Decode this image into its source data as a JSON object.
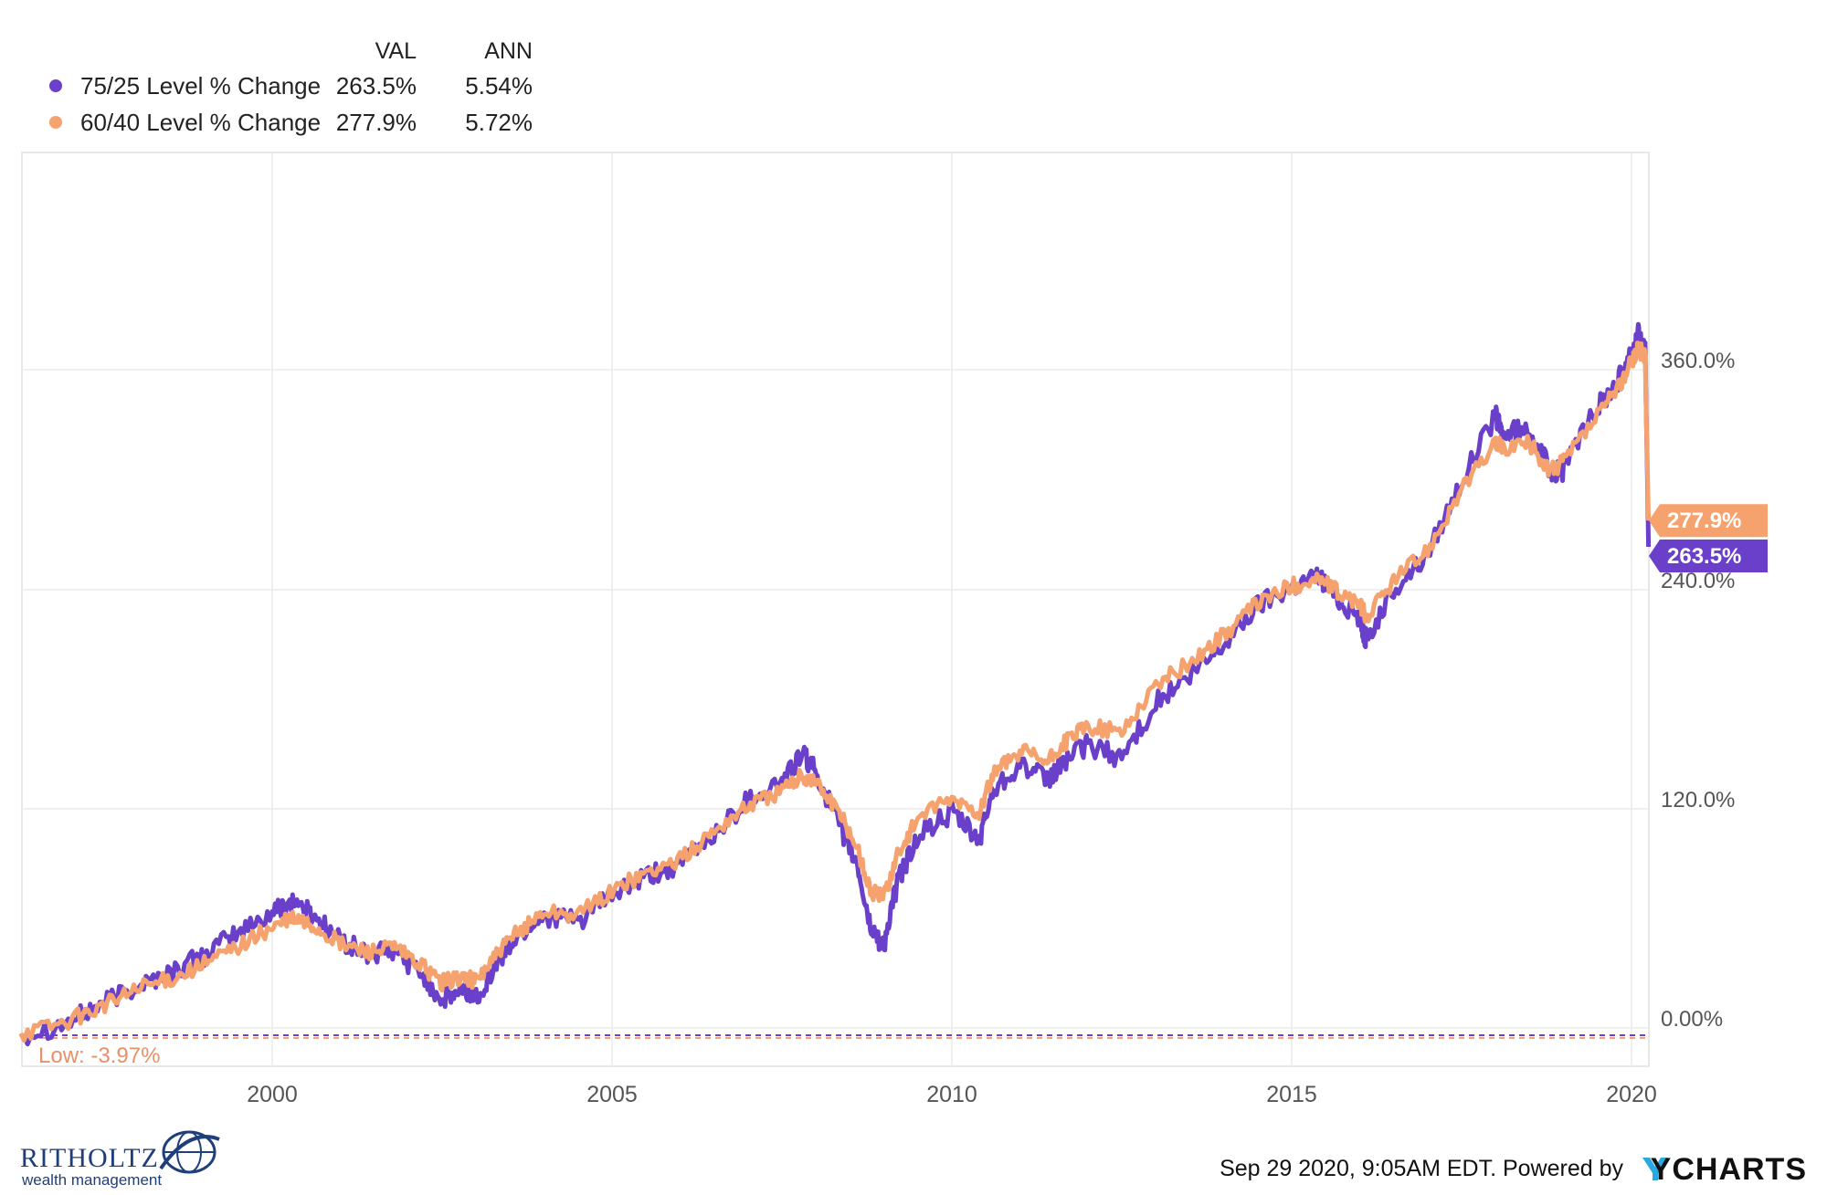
{
  "chart_data": {
    "type": "line",
    "title": "",
    "xlabel": "",
    "ylabel": "",
    "x_ticks": [
      "2000",
      "2005",
      "2010",
      "2015",
      "2020"
    ],
    "y_ticks": [
      "0.00%",
      "120.0%",
      "240.0%",
      "360.0%"
    ],
    "ylim": [
      -28,
      470
    ],
    "xlim": [
      1996.3,
      2020.3
    ],
    "legend_position": "top-left",
    "legend_columns": [
      "VAL",
      "ANN"
    ],
    "grid": true,
    "series": [
      {
        "name": "75/25 Level % Change",
        "val": "263.5%",
        "ann": "5.54%",
        "end_label": "263.5%",
        "color": "#6a3fc9",
        "x": [
          1996.3,
          1997.0,
          1997.5,
          1998.0,
          1998.5,
          1999.0,
          1999.5,
          2000.0,
          2000.3,
          2000.6,
          2001.0,
          2001.4,
          2001.8,
          2002.2,
          2002.5,
          2002.8,
          2003.0,
          2003.3,
          2003.6,
          2004.0,
          2004.5,
          2005.0,
          2005.5,
          2006.0,
          2006.5,
          2007.0,
          2007.5,
          2007.8,
          2008.0,
          2008.3,
          2008.6,
          2008.8,
          2009.0,
          2009.2,
          2009.5,
          2010.0,
          2010.4,
          2010.6,
          2011.0,
          2011.4,
          2011.7,
          2012.0,
          2012.5,
          2013.0,
          2013.5,
          2014.0,
          2014.5,
          2015.0,
          2015.4,
          2015.7,
          2016.0,
          2016.1,
          2016.5,
          2017.0,
          2017.5,
          2018.0,
          2018.1,
          2018.5,
          2018.8,
          2019.0,
          2019.5,
          2019.8,
          2020.0,
          2020.1,
          2020.2,
          2020.25
        ],
        "y": [
          -4,
          3,
          13,
          23,
          30,
          40,
          52,
          63,
          70,
          62,
          48,
          40,
          42,
          30,
          15,
          20,
          17,
          35,
          50,
          62,
          58,
          73,
          82,
          90,
          106,
          125,
          135,
          150,
          140,
          115,
          90,
          55,
          45,
          80,
          105,
          118,
          102,
          130,
          145,
          135,
          148,
          155,
          148,
          178,
          192,
          210,
          232,
          242,
          248,
          235,
          225,
          212,
          240,
          260,
          300,
          335,
          325,
          328,
          305,
          305,
          340,
          355,
          372,
          380,
          370,
          263.5
        ]
      },
      {
        "name": "60/40 Level % Change",
        "val": "277.9%",
        "ann": "5.72%",
        "end_label": "277.9%",
        "color": "#f5a26e",
        "x": [
          1996.3,
          1997.0,
          1997.5,
          1998.0,
          1998.5,
          1999.0,
          1999.5,
          2000.0,
          2000.3,
          2000.6,
          2001.0,
          2001.4,
          2001.8,
          2002.2,
          2002.5,
          2002.8,
          2003.0,
          2003.3,
          2003.6,
          2004.0,
          2004.5,
          2005.0,
          2005.5,
          2006.0,
          2006.5,
          2007.0,
          2007.5,
          2007.8,
          2008.0,
          2008.3,
          2008.6,
          2008.8,
          2009.0,
          2009.2,
          2009.5,
          2010.0,
          2010.4,
          2010.6,
          2011.0,
          2011.4,
          2011.7,
          2012.0,
          2012.5,
          2013.0,
          2013.5,
          2014.0,
          2014.5,
          2015.0,
          2015.4,
          2015.7,
          2016.0,
          2016.1,
          2016.5,
          2017.0,
          2017.5,
          2018.0,
          2018.1,
          2018.5,
          2018.8,
          2019.0,
          2019.5,
          2019.8,
          2020.0,
          2020.1,
          2020.2,
          2020.25
        ],
        "y": [
          -3,
          4,
          12,
          21,
          27,
          35,
          45,
          55,
          60,
          56,
          46,
          42,
          44,
          34,
          25,
          28,
          26,
          40,
          52,
          64,
          62,
          75,
          85,
          92,
          108,
          122,
          130,
          138,
          135,
          120,
          100,
          75,
          72,
          95,
          115,
          125,
          118,
          138,
          152,
          145,
          158,
          165,
          162,
          188,
          200,
          215,
          233,
          242,
          246,
          238,
          232,
          225,
          245,
          262,
          295,
          320,
          318,
          320,
          305,
          310,
          335,
          350,
          365,
          372,
          368,
          277.9
        ]
      }
    ],
    "reference_line": {
      "label": "Low: -3.97%",
      "value": -3.97
    }
  },
  "footer": {
    "timestamp": "Sep 29 2020, 9:05AM EDT. Powered by",
    "brand": "YCHARTS"
  },
  "logo": {
    "title": "RITHOLTZ",
    "subtitle": "wealth management"
  }
}
